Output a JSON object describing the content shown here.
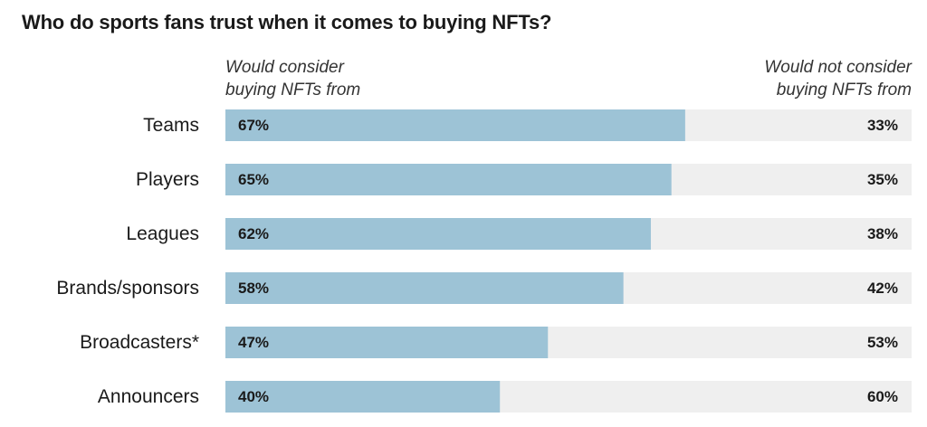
{
  "title": "Who do sports fans trust when it comes to buying NFTs?",
  "header_left": [
    "Would consider",
    "buying NFTs from"
  ],
  "header_right": [
    "Would not consider",
    "buying NFTs from"
  ],
  "colors": {
    "consider": "#9dc3d6",
    "not_consider": "#efefef",
    "text": "#1a1a1a"
  },
  "chart_data": {
    "type": "bar",
    "orientation": "horizontal",
    "stacked": true,
    "categories": [
      "Teams",
      "Players",
      "Leagues",
      "Brands/sponsors",
      "Broadcasters*",
      "Announcers"
    ],
    "series": [
      {
        "name": "Would consider buying NFTs from",
        "values": [
          67,
          65,
          62,
          58,
          47,
          40
        ],
        "labels": [
          "67%",
          "65%",
          "62%",
          "58%",
          "47%",
          "40%"
        ]
      },
      {
        "name": "Would not consider buying NFTs from",
        "values": [
          33,
          35,
          38,
          42,
          53,
          60
        ],
        "labels": [
          "33%",
          "35%",
          "38%",
          "42%",
          "53%",
          "60%"
        ]
      }
    ],
    "xlim": [
      0,
      100
    ],
    "grid": false,
    "legend": "top"
  }
}
